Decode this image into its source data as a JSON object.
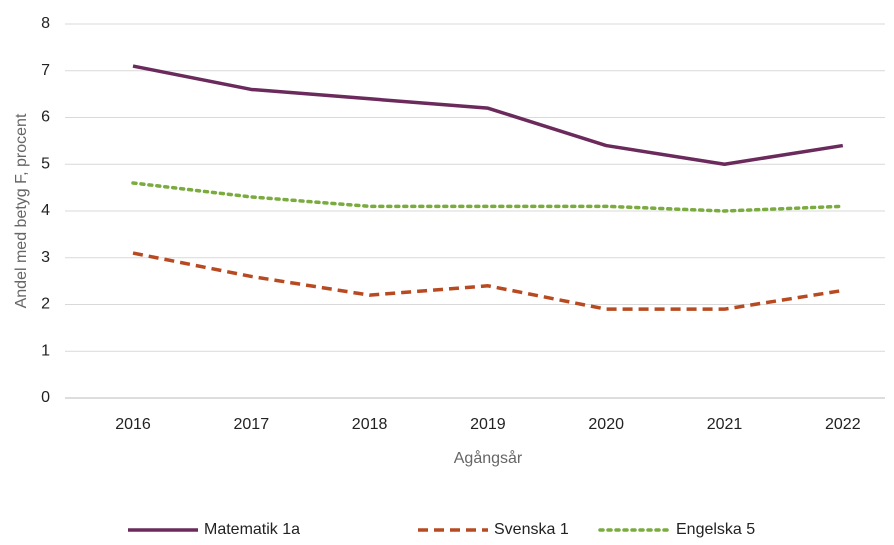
{
  "chart_data": {
    "type": "line",
    "ylabel": "Andel med betyg F, procent",
    "xlabel": "Agångsår",
    "categories": [
      "2016",
      "2017",
      "2018",
      "2019",
      "2020",
      "2021",
      "2022"
    ],
    "series": [
      {
        "name": "Matematik 1a",
        "color": "#6b2a5c",
        "line_style": "solid",
        "values": [
          7.1,
          6.6,
          6.4,
          6.2,
          5.4,
          5.0,
          5.4
        ]
      },
      {
        "name": "Svenska 1",
        "color": "#b84a22",
        "line_style": "dashed",
        "values": [
          3.1,
          2.6,
          2.2,
          2.4,
          1.9,
          1.9,
          2.3
        ]
      },
      {
        "name": "Engelska 5",
        "color": "#7aab3e",
        "line_style": "dotted",
        "values": [
          4.6,
          4.3,
          4.1,
          4.1,
          4.1,
          4.0,
          4.1
        ]
      }
    ],
    "ylim": [
      0,
      8
    ],
    "yticks": [
      0,
      1,
      2,
      3,
      4,
      5,
      6,
      7,
      8
    ],
    "grid": true,
    "legend": "bottom"
  }
}
